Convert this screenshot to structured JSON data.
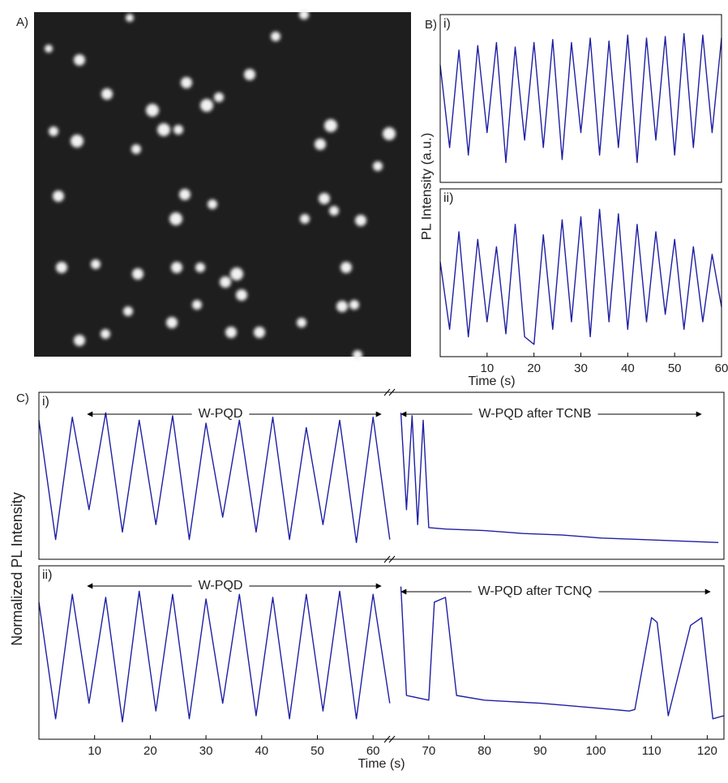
{
  "figure": {
    "panel_a": "A)",
    "panel_b": "B)",
    "panel_c": "C)",
    "b_ylabel": "PL Intensity (a.u.)",
    "c_ylabel": "Normalized  PL Intensity"
  },
  "chart_data": [
    {
      "type": "line",
      "title": "i)",
      "x": [
        0,
        2,
        4,
        6,
        8,
        10,
        12,
        14,
        16,
        18,
        20,
        22,
        24,
        26,
        28,
        30,
        32,
        34,
        36,
        38,
        40,
        42,
        44,
        46,
        48,
        50,
        52,
        54,
        56,
        58,
        60
      ],
      "series": [
        {
          "color": "#1f1fa3",
          "values": [
            0.75,
            0.2,
            0.85,
            0.15,
            0.88,
            0.3,
            0.9,
            0.1,
            0.87,
            0.25,
            0.9,
            0.2,
            0.92,
            0.12,
            0.9,
            0.3,
            0.93,
            0.15,
            0.91,
            0.2,
            0.95,
            0.1,
            0.93,
            0.25,
            0.94,
            0.15,
            0.96,
            0.2,
            0.95,
            0.3,
            0.93
          ]
        }
      ],
      "xlim": [
        0,
        60
      ],
      "ylim": [
        0,
        1
      ]
    },
    {
      "type": "line",
      "title": "ii)",
      "x": [
        0,
        2,
        4,
        6,
        8,
        10,
        12,
        14,
        16,
        18,
        20,
        22,
        24,
        26,
        28,
        30,
        32,
        34,
        36,
        38,
        40,
        42,
        44,
        46,
        48,
        50,
        52,
        54,
        56,
        58,
        60
      ],
      "series": [
        {
          "color": "#1f1fa3",
          "values": [
            0.6,
            0.15,
            0.8,
            0.1,
            0.75,
            0.2,
            0.7,
            0.12,
            0.85,
            0.1,
            0.05,
            0.78,
            0.15,
            0.88,
            0.2,
            0.9,
            0.1,
            0.95,
            0.2,
            0.92,
            0.15,
            0.85,
            0.2,
            0.8,
            0.25,
            0.75,
            0.15,
            0.7,
            0.2,
            0.65,
            0.3
          ]
        }
      ],
      "xlim": [
        0,
        60
      ],
      "ylim": [
        0,
        1
      ],
      "xticks": [
        10,
        20,
        30,
        40,
        50,
        60
      ],
      "xlabel": "Time (s)"
    },
    {
      "type": "line",
      "title": "i)",
      "x": [
        0,
        3,
        6,
        9,
        12,
        15,
        18,
        21,
        24,
        27,
        30,
        33,
        36,
        39,
        42,
        45,
        48,
        51,
        54,
        57,
        60,
        63,
        64,
        65,
        66,
        67,
        68,
        69,
        70,
        73,
        80,
        87,
        94,
        101,
        108,
        115,
        122
      ],
      "series": [
        {
          "color": "#1f1fa3",
          "values": [
            0.9,
            0.1,
            0.92,
            0.3,
            0.95,
            0.15,
            0.9,
            0.2,
            0.93,
            0.1,
            0.88,
            0.25,
            0.9,
            0.15,
            0.92,
            0.1,
            0.85,
            0.2,
            0.9,
            0.08,
            0.92,
            0.1,
            null,
            0.95,
            0.3,
            0.93,
            0.2,
            0.9,
            0.18,
            0.17,
            0.16,
            0.14,
            0.13,
            0.11,
            0.1,
            0.09,
            0.08
          ]
        }
      ],
      "xlim": [
        0,
        123
      ],
      "ylim": [
        0,
        1
      ],
      "annotations": [
        "W-PQD",
        "W-PQD after TCNB"
      ]
    },
    {
      "type": "line",
      "title": "ii)",
      "x": [
        0,
        3,
        6,
        9,
        12,
        15,
        18,
        21,
        24,
        27,
        30,
        33,
        36,
        39,
        42,
        45,
        48,
        51,
        54,
        57,
        60,
        63,
        64,
        65,
        66,
        70,
        71,
        73,
        75,
        80,
        90,
        100,
        106,
        107,
        110,
        111,
        113,
        117,
        119,
        121,
        123
      ],
      "series": [
        {
          "color": "#1f1fa3",
          "values": [
            0.85,
            0.1,
            0.9,
            0.2,
            0.88,
            0.08,
            0.92,
            0.15,
            0.9,
            0.1,
            0.87,
            0.2,
            0.9,
            0.12,
            0.88,
            0.1,
            0.9,
            0.15,
            0.92,
            0.1,
            0.9,
            0.2,
            null,
            0.95,
            0.25,
            0.22,
            0.85,
            0.88,
            0.25,
            0.22,
            0.2,
            0.17,
            0.15,
            0.16,
            0.75,
            0.72,
            0.12,
            0.7,
            0.75,
            0.1,
            0.12
          ]
        }
      ],
      "xlim": [
        0,
        123
      ],
      "ylim": [
        0,
        1
      ],
      "xticks": [
        10,
        20,
        30,
        40,
        50,
        60,
        70,
        80,
        90,
        100,
        110,
        120
      ],
      "xlabel": "Time (s)",
      "annotations": [
        "W-PQD",
        "W-PQD after TCNQ"
      ]
    }
  ]
}
